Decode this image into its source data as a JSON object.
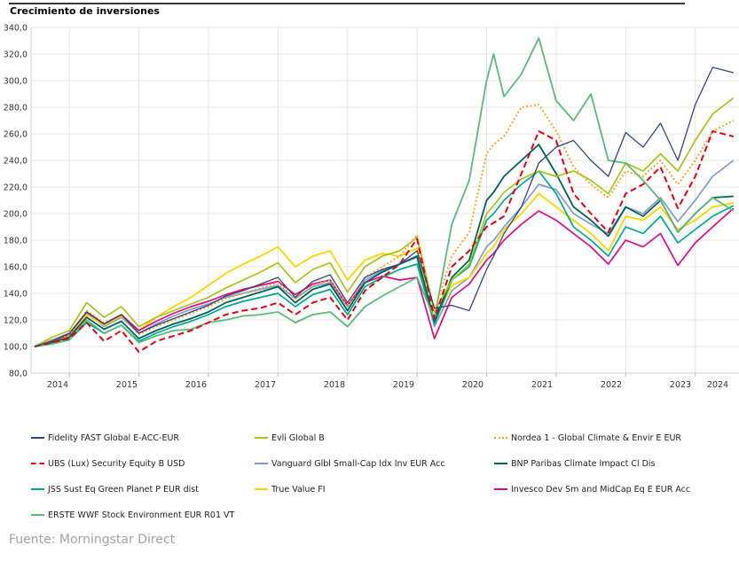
{
  "title": "Crecimiento de inversiones",
  "source": "Fuente: Morningstar Direct",
  "chart_data": {
    "type": "line",
    "title": "Crecimiento de inversiones",
    "baseline": 100,
    "grid": true,
    "legend_position": "bottom",
    "y_axis": {
      "min": 80,
      "max": 340,
      "step": 20,
      "tick_labels": [
        "340,0",
        "320,0",
        "300,0",
        "280,0",
        "260,0",
        "240,0",
        "220,0",
        "200,0",
        "180,0",
        "160,0",
        "140,0",
        "120,0",
        "100,0",
        "80,0"
      ]
    },
    "x_axis": {
      "tick_labels": [
        "2014",
        "2015",
        "2016",
        "2017",
        "2018",
        "2019",
        "2020",
        "2021",
        "2022",
        "2023",
        "2024"
      ]
    },
    "x": [
      2014.5,
      2014.75,
      2015.0,
      2015.25,
      2015.5,
      2015.75,
      2016.0,
      2016.25,
      2016.5,
      2016.75,
      2017.0,
      2017.25,
      2017.5,
      2017.75,
      2018.0,
      2018.25,
      2018.5,
      2018.75,
      2019.0,
      2019.25,
      2019.5,
      2019.75,
      2020.0,
      2020.25,
      2020.5,
      2020.75,
      2021.0,
      2021.1,
      2021.25,
      2021.5,
      2021.75,
      2022.0,
      2022.25,
      2022.5,
      2022.75,
      2023.0,
      2023.25,
      2023.5,
      2023.75,
      2024.0,
      2024.25,
      2024.55
    ],
    "series": [
      {
        "name": "Fidelity FAST Global E-ACC-EUR",
        "color": "#31467c",
        "style": "solid",
        "width": 1.3,
        "values": [
          100,
          104,
          110,
          126,
          117,
          124,
          110,
          116,
          121,
          126,
          131,
          138,
          142,
          147,
          152,
          137,
          149,
          154,
          133,
          152,
          158,
          162,
          172,
          129,
          131,
          127,
          158,
          168,
          185,
          205,
          238,
          250,
          255,
          240,
          228,
          261,
          250,
          268,
          240,
          282,
          310,
          306
        ]
      },
      {
        "name": "Evli Global B",
        "color": "#a2c617",
        "style": "solid",
        "width": 1.7,
        "values": [
          100,
          107,
          112,
          133,
          122,
          130,
          115,
          122,
          127,
          132,
          137,
          144,
          150,
          156,
          163,
          148,
          158,
          163,
          141,
          160,
          168,
          172,
          182,
          126,
          150,
          162,
          200,
          206,
          216,
          226,
          232,
          228,
          232,
          225,
          215,
          238,
          232,
          245,
          232,
          255,
          275,
          287
        ]
      },
      {
        "name": "Nordea 1 - Global Climate & Envir E EUR",
        "color": "#f5a31b",
        "style": "dotted",
        "width": 2,
        "values": [
          100,
          105,
          109,
          127,
          118,
          124,
          109,
          115,
          120,
          125,
          130,
          136,
          140,
          144,
          148,
          136,
          146,
          150,
          130,
          152,
          160,
          168,
          184,
          127,
          168,
          186,
          245,
          252,
          258,
          280,
          282,
          262,
          235,
          222,
          212,
          232,
          228,
          240,
          222,
          240,
          262,
          270
        ]
      },
      {
        "name": "UBS (Lux) Security Equity B USD",
        "color": "#e60012",
        "style": "dashed",
        "width": 2,
        "values": [
          100,
          103,
          106,
          118,
          104,
          112,
          96,
          104,
          108,
          112,
          118,
          124,
          127,
          129,
          133,
          124,
          133,
          137,
          120,
          142,
          152,
          162,
          181,
          121,
          160,
          172,
          190,
          193,
          198,
          230,
          262,
          255,
          215,
          200,
          186,
          215,
          222,
          235,
          204,
          228,
          262,
          258
        ]
      },
      {
        "name": "Vanguard Glbl Small-Cap Idx Inv EUR Acc",
        "color": "#7f9cc9",
        "style": "solid",
        "width": 1.7,
        "values": [
          100,
          105,
          110,
          125,
          115,
          122,
          110,
          117,
          123,
          128,
          132,
          137,
          140,
          143,
          146,
          136,
          145,
          148,
          130,
          150,
          157,
          162,
          167,
          115,
          142,
          152,
          175,
          180,
          190,
          205,
          222,
          218,
          200,
          192,
          185,
          205,
          200,
          212,
          194,
          210,
          228,
          240
        ]
      },
      {
        "name": "BNP Paribas Climate Impact Cl Dis",
        "color": "#00615c",
        "style": "solid",
        "width": 1.8,
        "values": [
          100,
          103,
          107,
          122,
          113,
          119,
          106,
          112,
          117,
          121,
          126,
          133,
          137,
          141,
          145,
          133,
          143,
          147,
          127,
          148,
          156,
          162,
          168,
          119,
          152,
          165,
          210,
          216,
          228,
          240,
          252,
          230,
          205,
          195,
          183,
          205,
          198,
          210,
          186,
          200,
          212,
          213
        ]
      },
      {
        "name": "JSS Sust Eq Green Planet P EUR dist",
        "color": "#00a88f",
        "style": "solid",
        "width": 1.7,
        "values": [
          100,
          102,
          105,
          118,
          110,
          116,
          104,
          110,
          115,
          119,
          124,
          130,
          134,
          137,
          140,
          130,
          139,
          143,
          124,
          145,
          152,
          158,
          162,
          117,
          150,
          160,
          195,
          200,
          210,
          222,
          232,
          215,
          190,
          180,
          168,
          190,
          185,
          198,
          178,
          188,
          198,
          206
        ]
      },
      {
        "name": "True Value FI",
        "color": "#ffd400",
        "style": "solid",
        "width": 1.8,
        "values": [
          100,
          104,
          108,
          124,
          116,
          123,
          112,
          122,
          130,
          137,
          146,
          155,
          162,
          168,
          175,
          160,
          168,
          172,
          150,
          165,
          170,
          168,
          174,
          119,
          146,
          152,
          170,
          175,
          188,
          200,
          215,
          205,
          195,
          185,
          172,
          198,
          195,
          205,
          188,
          195,
          205,
          208
        ]
      },
      {
        "name": "Invesco Dev Sm and MidCap Eq E EUR Acc",
        "color": "#e5097f",
        "style": "solid",
        "width": 1.7,
        "values": [
          100,
          104,
          109,
          126,
          117,
          124,
          112,
          119,
          125,
          130,
          134,
          139,
          143,
          146,
          149,
          139,
          147,
          150,
          131,
          148,
          153,
          150,
          152,
          106,
          137,
          147,
          165,
          170,
          180,
          192,
          202,
          195,
          185,
          175,
          162,
          180,
          175,
          185,
          161,
          178,
          190,
          204
        ]
      },
      {
        "name": "ERSTE WWF Stock Environment EUR R01 VT",
        "color": "#5cb87c",
        "style": "solid",
        "width": 1.8,
        "values": [
          100,
          102,
          105,
          120,
          110,
          116,
          103,
          108,
          112,
          113,
          118,
          120,
          123,
          124,
          126,
          118,
          124,
          126,
          115,
          130,
          138,
          145,
          152,
          121,
          192,
          225,
          300,
          320,
          288,
          305,
          332,
          285,
          270,
          290,
          240,
          238,
          225,
          210,
          186,
          200,
          212,
          202
        ]
      }
    ]
  }
}
